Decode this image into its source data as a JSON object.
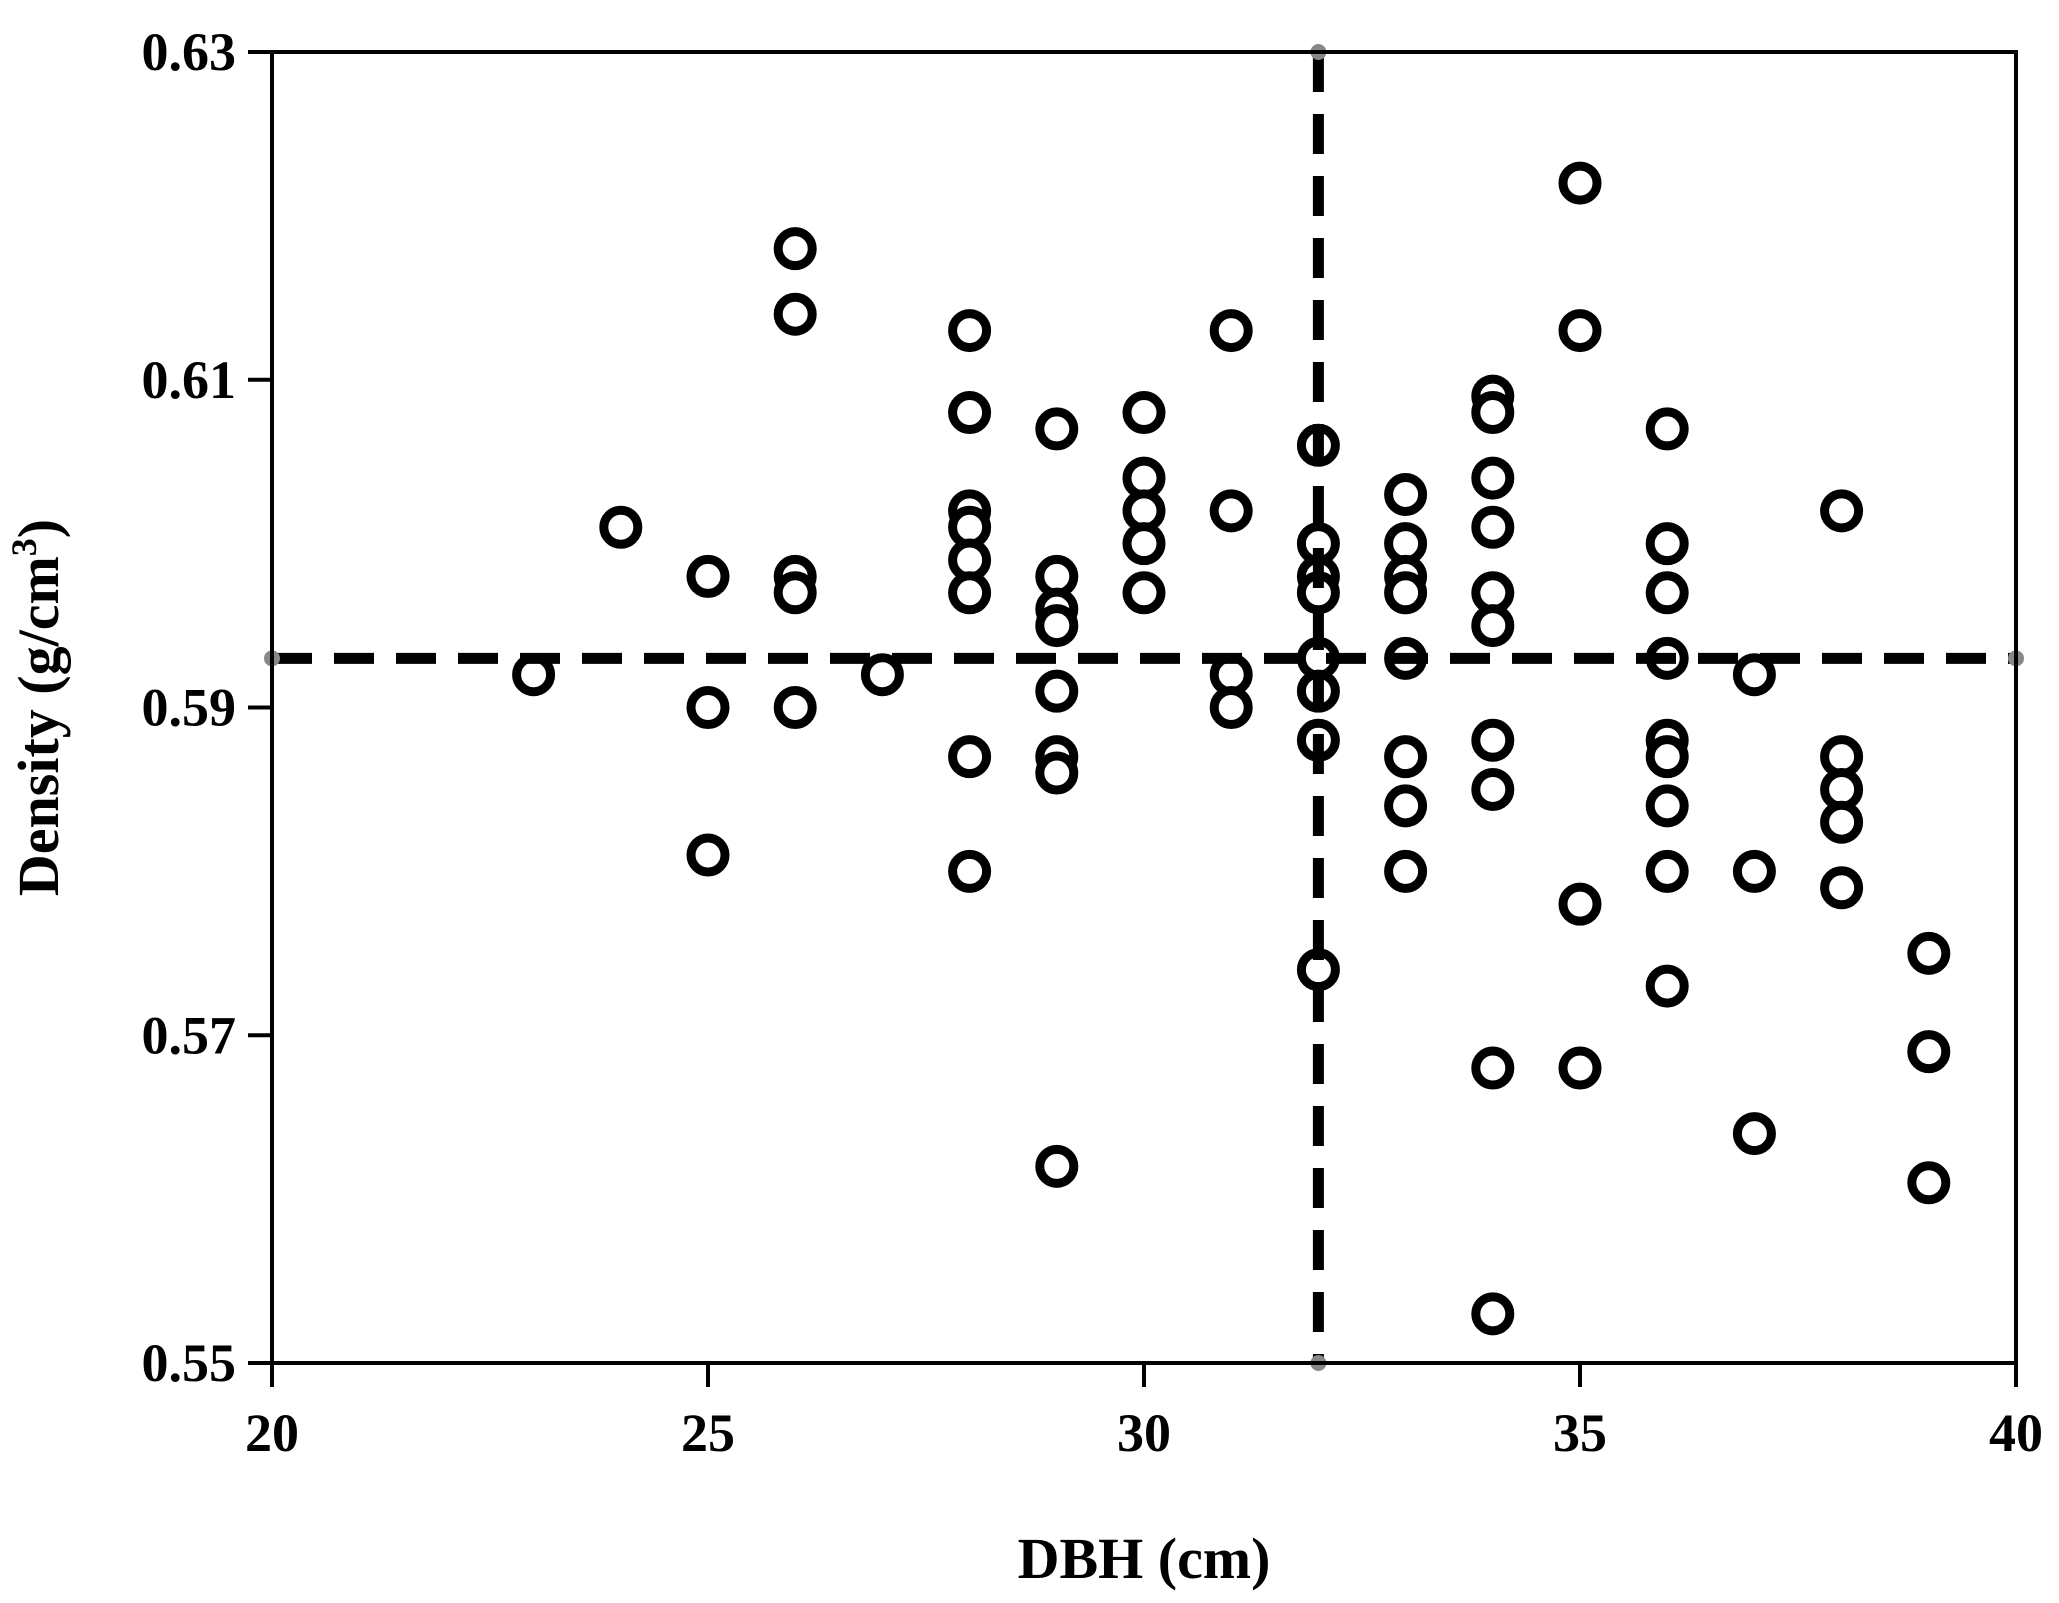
{
  "chart_data": {
    "type": "scatter",
    "title": "",
    "xlabel": "DBH (cm)",
    "ylabel_main": "Density (g/cm",
    "ylabel_sup": "3",
    "ylabel_close": ")",
    "xlim": [
      20,
      40
    ],
    "ylim": [
      0.55,
      0.63
    ],
    "xticks": [
      20,
      25,
      30,
      35,
      40
    ],
    "xtick_labels": [
      "20",
      "25",
      "30",
      "35",
      "40"
    ],
    "yticks": [
      0.55,
      0.57,
      0.59,
      0.61,
      0.63
    ],
    "ytick_labels": [
      "0.55",
      "0.57",
      "0.59",
      "0.61",
      "0.63"
    ],
    "grid": false,
    "legend": "none",
    "colors": {
      "marker": "#000000",
      "line": "#000000",
      "endpoint": "#888888"
    },
    "reference_lines": {
      "vertical_x": 32,
      "horizontal_y": 0.593
    },
    "points": [
      [
        23,
        0.592
      ],
      [
        24,
        0.601
      ],
      [
        25,
        0.598
      ],
      [
        25,
        0.59
      ],
      [
        25,
        0.581
      ],
      [
        26,
        0.618
      ],
      [
        26,
        0.614
      ],
      [
        26,
        0.598
      ],
      [
        26,
        0.597
      ],
      [
        26,
        0.59
      ],
      [
        27,
        0.592
      ],
      [
        28,
        0.613
      ],
      [
        28,
        0.608
      ],
      [
        28,
        0.602
      ],
      [
        28,
        0.601
      ],
      [
        28,
        0.599
      ],
      [
        28,
        0.597
      ],
      [
        28,
        0.587
      ],
      [
        28,
        0.58
      ],
      [
        29,
        0.607
      ],
      [
        29,
        0.598
      ],
      [
        29,
        0.596
      ],
      [
        29,
        0.595
      ],
      [
        29,
        0.591
      ],
      [
        29,
        0.587
      ],
      [
        29,
        0.586
      ],
      [
        29,
        0.562
      ],
      [
        30,
        0.608
      ],
      [
        30,
        0.604
      ],
      [
        30,
        0.602
      ],
      [
        30,
        0.6
      ],
      [
        30,
        0.597
      ],
      [
        31,
        0.613
      ],
      [
        31,
        0.602
      ],
      [
        31,
        0.592
      ],
      [
        31,
        0.59
      ],
      [
        32,
        0.606
      ],
      [
        32,
        0.6
      ],
      [
        32,
        0.598
      ],
      [
        32,
        0.597
      ],
      [
        32,
        0.593
      ],
      [
        32,
        0.591
      ],
      [
        32,
        0.588
      ],
      [
        32,
        0.574
      ],
      [
        33,
        0.603
      ],
      [
        33,
        0.6
      ],
      [
        33,
        0.598
      ],
      [
        33,
        0.597
      ],
      [
        33,
        0.593
      ],
      [
        33,
        0.587
      ],
      [
        33,
        0.584
      ],
      [
        33,
        0.58
      ],
      [
        34,
        0.609
      ],
      [
        34,
        0.608
      ],
      [
        34,
        0.604
      ],
      [
        34,
        0.601
      ],
      [
        34,
        0.597
      ],
      [
        34,
        0.595
      ],
      [
        34,
        0.588
      ],
      [
        34,
        0.585
      ],
      [
        34,
        0.568
      ],
      [
        34,
        0.553
      ],
      [
        35,
        0.622
      ],
      [
        35,
        0.613
      ],
      [
        35,
        0.578
      ],
      [
        35,
        0.568
      ],
      [
        36,
        0.607
      ],
      [
        36,
        0.6
      ],
      [
        36,
        0.597
      ],
      [
        36,
        0.593
      ],
      [
        36,
        0.588
      ],
      [
        36,
        0.587
      ],
      [
        36,
        0.584
      ],
      [
        36,
        0.58
      ],
      [
        36,
        0.573
      ],
      [
        37,
        0.592
      ],
      [
        37,
        0.58
      ],
      [
        37,
        0.564
      ],
      [
        38,
        0.602
      ],
      [
        38,
        0.587
      ],
      [
        38,
        0.585
      ],
      [
        38,
        0.583
      ],
      [
        38,
        0.579
      ],
      [
        39,
        0.575
      ],
      [
        39,
        0.569
      ],
      [
        39,
        0.561
      ]
    ]
  }
}
